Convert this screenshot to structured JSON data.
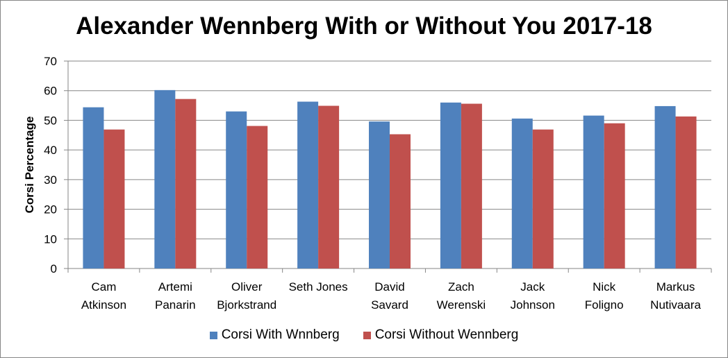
{
  "chart_data": {
    "type": "bar",
    "title": "Alexander Wennberg With or Without You 2017-18",
    "xlabel": "",
    "ylabel": "Corsi Percentage",
    "ylim": [
      0,
      70
    ],
    "yticks": [
      0,
      10,
      20,
      30,
      40,
      50,
      60,
      70
    ],
    "grid": true,
    "legend_position": "bottom",
    "categories": [
      [
        "Cam",
        "Atkinson"
      ],
      [
        "Artemi",
        "Panarin"
      ],
      [
        "Oliver",
        "Bjorkstrand"
      ],
      [
        "Seth Jones"
      ],
      [
        "David",
        "Savard"
      ],
      [
        "Zach",
        "Werenski"
      ],
      [
        "Jack",
        "Johnson"
      ],
      [
        "Nick",
        "Foligno"
      ],
      [
        "Markus",
        "Nutivaara"
      ]
    ],
    "series": [
      {
        "name": "Corsi With Wnnberg",
        "color": "#4f81bd",
        "values": [
          54.4,
          60.2,
          53.0,
          56.3,
          49.6,
          56.0,
          50.6,
          51.6,
          54.8
        ]
      },
      {
        "name": "Corsi Without Wennberg",
        "color": "#c0504d",
        "values": [
          46.9,
          57.2,
          48.1,
          54.9,
          45.3,
          55.6,
          46.9,
          49.0,
          51.3
        ]
      }
    ]
  }
}
